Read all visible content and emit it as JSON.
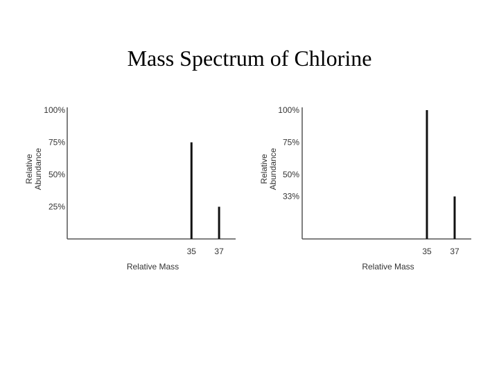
{
  "slide": {
    "title": "Mass Spectrum of Chlorine"
  },
  "chart_data": [
    {
      "type": "bar",
      "title": "",
      "xlabel": "Relative Mass",
      "ylabel_lines": [
        "Relative",
        "Abundance"
      ],
      "ytick_labels": [
        "100%",
        "75%",
        "50%",
        "25%"
      ],
      "ytick_values": [
        100,
        75,
        50,
        25
      ],
      "xtick_labels": [
        "35",
        "37"
      ],
      "categories": [
        35,
        37
      ],
      "values": [
        75,
        25
      ],
      "ylim": [
        0,
        100
      ],
      "xlim": [
        26,
        38.2
      ],
      "grid": false,
      "color": "#111111"
    },
    {
      "type": "bar",
      "title": "",
      "xlabel": "Relative Mass",
      "ylabel_lines": [
        "Relative",
        "Abundance"
      ],
      "ytick_labels": [
        "100%",
        "75%",
        "50%",
        "33%"
      ],
      "ytick_values": [
        100,
        75,
        50,
        33
      ],
      "xtick_labels": [
        "35",
        "37"
      ],
      "categories": [
        35,
        37
      ],
      "values": [
        100,
        33
      ],
      "ylim": [
        0,
        100
      ],
      "xlim": [
        26,
        38.2
      ],
      "grid": false,
      "color": "#111111"
    }
  ]
}
